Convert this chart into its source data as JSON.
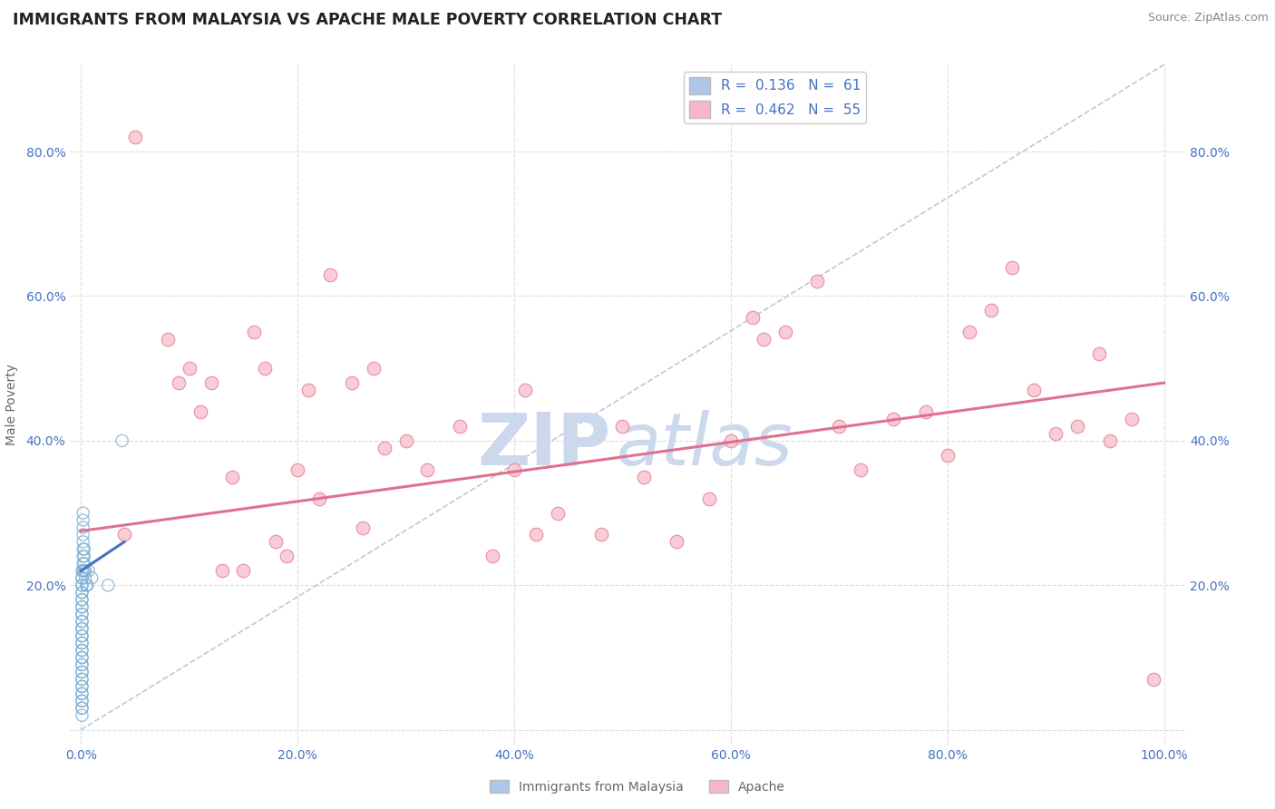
{
  "title": "IMMIGRANTS FROM MALAYSIA VS APACHE MALE POVERTY CORRELATION CHART",
  "source": "Source: ZipAtlas.com",
  "ylabel": "Male Poverty",
  "xlabel": "",
  "watermark_zip": "ZIP",
  "watermark_atlas": "atlas",
  "xlim": [
    -0.01,
    1.02
  ],
  "ylim": [
    -0.02,
    0.92
  ],
  "xtick_positions": [
    0.0,
    0.2,
    0.4,
    0.6,
    0.8,
    1.0
  ],
  "ytick_positions": [
    0.0,
    0.2,
    0.4,
    0.6,
    0.8
  ],
  "ytick_labels": [
    "",
    "20.0%",
    "40.0%",
    "60.0%",
    "80.0%"
  ],
  "xtick_labels": [
    "0.0%",
    "20.0%",
    "40.0%",
    "60.0%",
    "80.0%",
    "100.0%"
  ],
  "right_ytick_positions": [
    0.2,
    0.4,
    0.6,
    0.8
  ],
  "right_ytick_labels": [
    "20.0%",
    "40.0%",
    "60.0%",
    "80.0%"
  ],
  "legend_entries": [
    {
      "label": "R =  0.136   N =  61",
      "color": "#aec6e8"
    },
    {
      "label": "R =  0.462   N =  55",
      "color": "#f4b8c8"
    }
  ],
  "blue_scatter_x": [
    0.001,
    0.001,
    0.001,
    0.001,
    0.001,
    0.001,
    0.001,
    0.001,
    0.001,
    0.001,
    0.001,
    0.001,
    0.001,
    0.001,
    0.001,
    0.001,
    0.001,
    0.001,
    0.001,
    0.001,
    0.001,
    0.001,
    0.001,
    0.001,
    0.001,
    0.001,
    0.001,
    0.001,
    0.001,
    0.001,
    0.001,
    0.001,
    0.001,
    0.001,
    0.001,
    0.001,
    0.001,
    0.001,
    0.001,
    0.001,
    0.002,
    0.002,
    0.002,
    0.002,
    0.002,
    0.002,
    0.002,
    0.002,
    0.002,
    0.003,
    0.003,
    0.003,
    0.003,
    0.004,
    0.004,
    0.005,
    0.006,
    0.007,
    0.01,
    0.025,
    0.038
  ],
  "blue_scatter_y": [
    0.02,
    0.03,
    0.03,
    0.04,
    0.04,
    0.05,
    0.05,
    0.06,
    0.06,
    0.07,
    0.07,
    0.08,
    0.08,
    0.09,
    0.09,
    0.1,
    0.1,
    0.11,
    0.11,
    0.12,
    0.12,
    0.13,
    0.13,
    0.14,
    0.14,
    0.15,
    0.15,
    0.16,
    0.16,
    0.17,
    0.17,
    0.18,
    0.18,
    0.19,
    0.19,
    0.2,
    0.2,
    0.21,
    0.21,
    0.22,
    0.22,
    0.23,
    0.24,
    0.25,
    0.26,
    0.27,
    0.28,
    0.29,
    0.3,
    0.22,
    0.23,
    0.24,
    0.25,
    0.21,
    0.22,
    0.2,
    0.2,
    0.22,
    0.21,
    0.2,
    0.4
  ],
  "pink_scatter_x": [
    0.04,
    0.05,
    0.08,
    0.09,
    0.1,
    0.11,
    0.12,
    0.13,
    0.14,
    0.15,
    0.16,
    0.17,
    0.18,
    0.19,
    0.2,
    0.21,
    0.22,
    0.23,
    0.25,
    0.26,
    0.27,
    0.28,
    0.3,
    0.32,
    0.35,
    0.38,
    0.4,
    0.41,
    0.42,
    0.44,
    0.48,
    0.5,
    0.52,
    0.55,
    0.58,
    0.6,
    0.62,
    0.63,
    0.65,
    0.68,
    0.7,
    0.72,
    0.75,
    0.78,
    0.8,
    0.82,
    0.84,
    0.86,
    0.88,
    0.9,
    0.92,
    0.94,
    0.95,
    0.97,
    0.99
  ],
  "pink_scatter_y": [
    0.27,
    0.82,
    0.54,
    0.48,
    0.5,
    0.44,
    0.48,
    0.22,
    0.35,
    0.22,
    0.55,
    0.5,
    0.26,
    0.24,
    0.36,
    0.47,
    0.32,
    0.63,
    0.48,
    0.28,
    0.5,
    0.39,
    0.4,
    0.36,
    0.42,
    0.24,
    0.36,
    0.47,
    0.27,
    0.3,
    0.27,
    0.42,
    0.35,
    0.26,
    0.32,
    0.4,
    0.57,
    0.54,
    0.55,
    0.62,
    0.42,
    0.36,
    0.43,
    0.44,
    0.38,
    0.55,
    0.58,
    0.64,
    0.47,
    0.41,
    0.42,
    0.52,
    0.4,
    0.43,
    0.07
  ],
  "pink_line_x": [
    0.0,
    1.0
  ],
  "pink_line_y": [
    0.275,
    0.48
  ],
  "blue_line_x": [
    0.0,
    0.04
  ],
  "blue_line_y": [
    0.22,
    0.26
  ],
  "dashed_line_x": [
    0.0,
    1.0
  ],
  "dashed_line_y": [
    0.0,
    0.92
  ],
  "grid_color": "#dddddd",
  "grid_linestyle": "--",
  "scatter_blue_facecolor": "none",
  "scatter_blue_edge": "#7BAFD4",
  "scatter_pink_color": "#f9c8d4",
  "scatter_pink_edge": "#e8829a",
  "trend_blue_color": "#4472c4",
  "trend_pink_color": "#e07090",
  "dashed_color": "#aabbd4",
  "title_color": "#222222",
  "axis_label_color": "#666666",
  "tick_color": "#4472c4",
  "watermark_color": "#ccd8ec",
  "source_color": "#888888",
  "background_color": "#ffffff",
  "title_fontsize": 12.5,
  "source_fontsize": 9,
  "legend_fontsize": 11,
  "ylabel_fontsize": 10,
  "tick_fontsize": 10,
  "bottom_legend_labels": [
    "Immigrants from Malaysia",
    "Apache"
  ]
}
